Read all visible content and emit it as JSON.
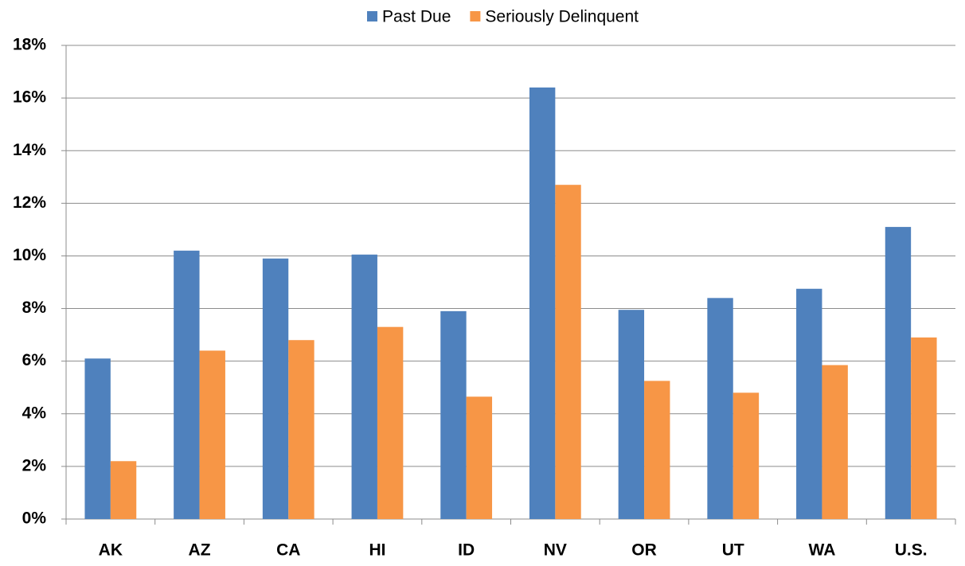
{
  "chart_data": {
    "type": "bar",
    "categories": [
      "AK",
      "AZ",
      "CA",
      "HI",
      "ID",
      "NV",
      "OR",
      "UT",
      "WA",
      "U.S."
    ],
    "series": [
      {
        "name": "Past Due",
        "color": "#4f81bd",
        "values": [
          6.1,
          10.2,
          9.9,
          10.05,
          7.9,
          16.4,
          7.95,
          8.4,
          8.75,
          11.1
        ]
      },
      {
        "name": "Seriously Delinquent",
        "color": "#f79646",
        "values": [
          2.2,
          6.4,
          6.8,
          7.3,
          4.65,
          12.7,
          5.25,
          4.8,
          5.85,
          6.9
        ]
      }
    ],
    "ylim": [
      0,
      18
    ],
    "yticks": [
      {
        "value": 0,
        "label": "0%"
      },
      {
        "value": 2,
        "label": "2%"
      },
      {
        "value": 4,
        "label": "4%"
      },
      {
        "value": 6,
        "label": "6%"
      },
      {
        "value": 8,
        "label": "8%"
      },
      {
        "value": 10,
        "label": "10%"
      },
      {
        "value": 12,
        "label": "12%"
      },
      {
        "value": 14,
        "label": "14%"
      },
      {
        "value": 16,
        "label": "16%"
      },
      {
        "value": 18,
        "label": "18%"
      }
    ],
    "grid": true,
    "legend": "top"
  }
}
